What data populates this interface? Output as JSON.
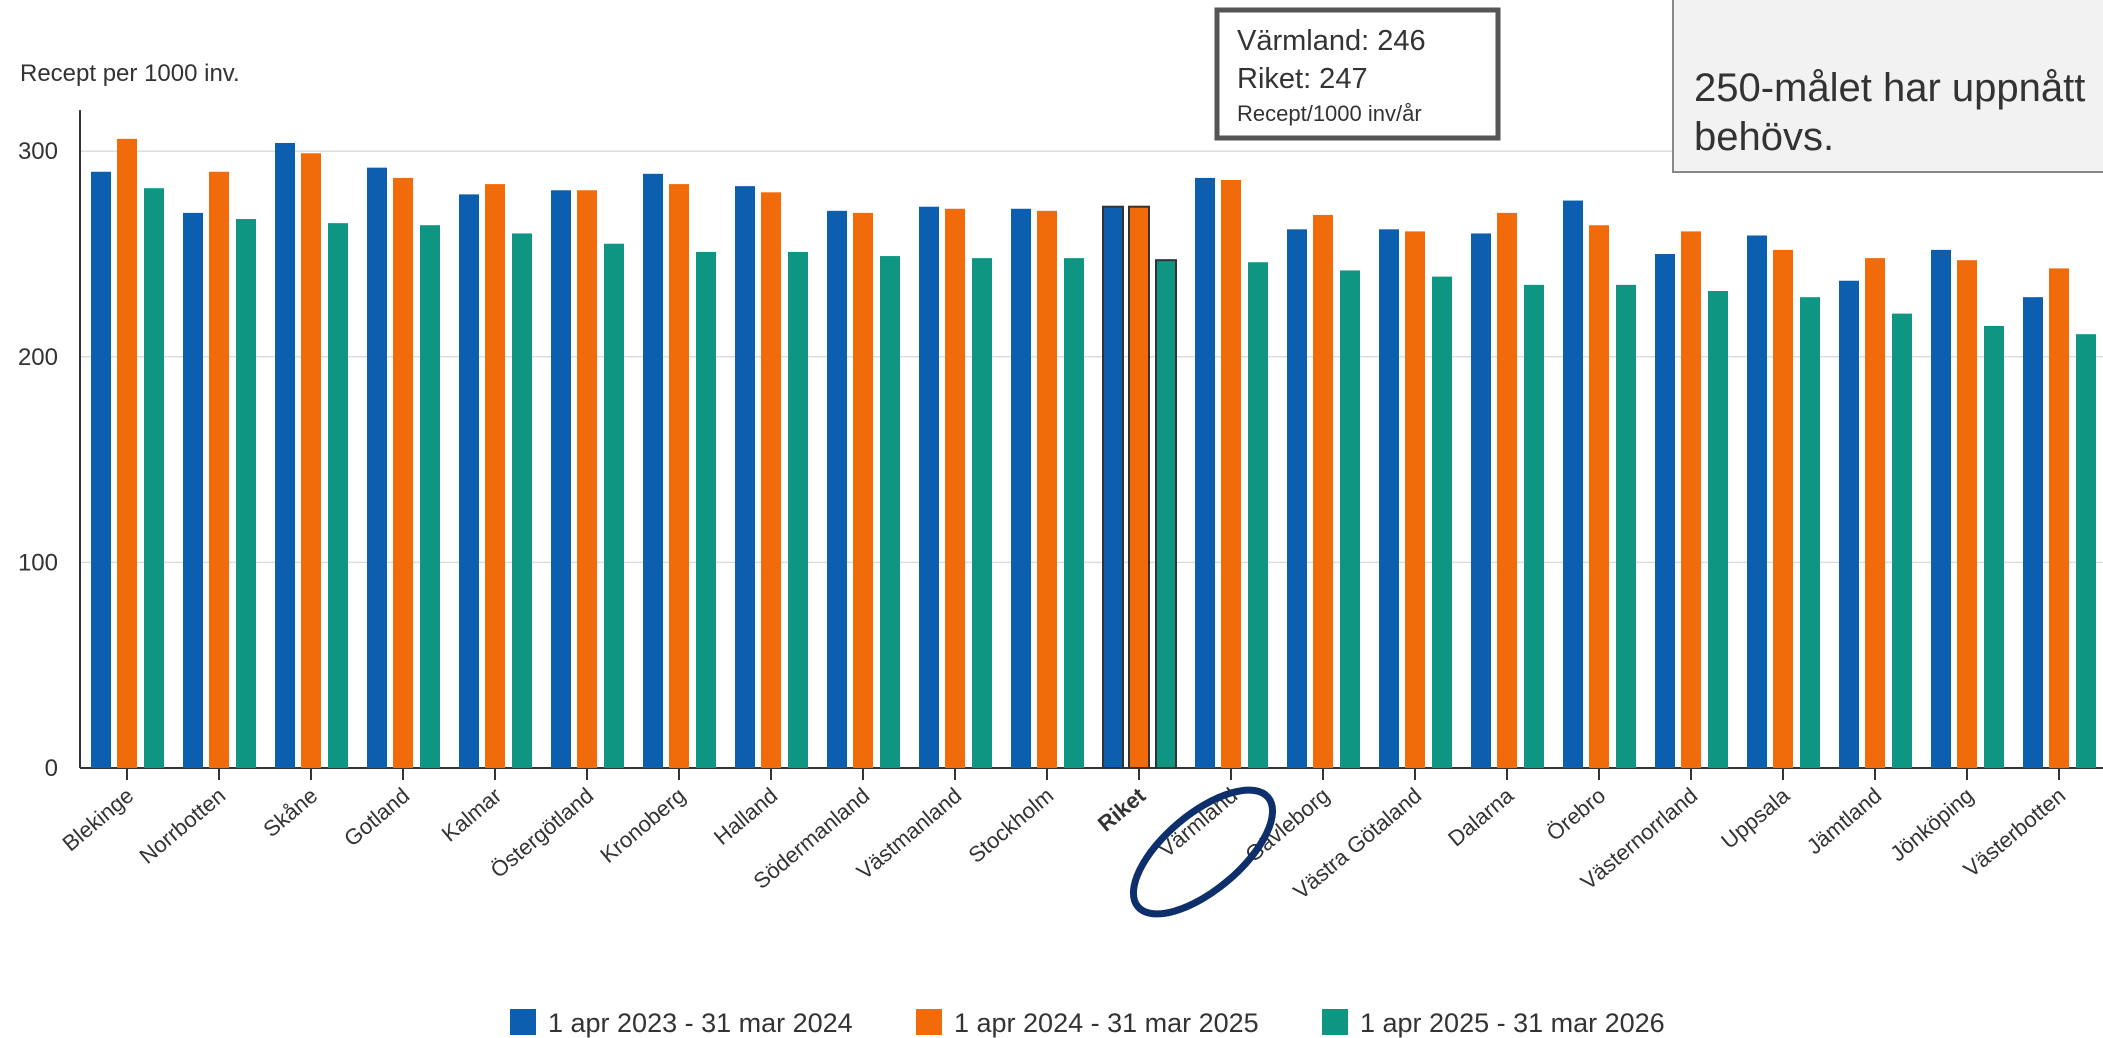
{
  "chart_data": {
    "type": "bar",
    "y_axis_label": "Recept per 1000 inv.",
    "categories": [
      "Blekinge",
      "Norrbotten",
      "Skåne",
      "Gotland",
      "Kalmar",
      "Östergötland",
      "Kronoberg",
      "Halland",
      "Södermanland",
      "Västmanland",
      "Stockholm",
      "Riket",
      "Värmland",
      "Gävleborg",
      "Västra Götaland",
      "Dalarna",
      "Örebro",
      "Västernorrland",
      "Uppsala",
      "Jämtland",
      "Jönköping",
      "Västerbotten"
    ],
    "highlight": "Riket",
    "series": [
      {
        "name": "1 apr 2023 - 31 mar 2024",
        "color": "#0b5fae",
        "values": [
          290,
          270,
          304,
          292,
          279,
          281,
          289,
          283,
          271,
          273,
          272,
          273,
          287,
          262,
          262,
          260,
          276,
          250,
          259,
          237,
          252,
          229
        ]
      },
      {
        "name": "1 apr 2024 - 31 mar 2025",
        "color": "#f26b0a",
        "values": [
          306,
          290,
          299,
          287,
          284,
          281,
          284,
          280,
          270,
          272,
          271,
          273,
          286,
          269,
          261,
          270,
          264,
          261,
          252,
          248,
          247,
          243
        ]
      },
      {
        "name": "1 apr 2025 - 31 mar 2026",
        "color": "#0f9683",
        "values": [
          282,
          267,
          265,
          264,
          260,
          255,
          251,
          251,
          249,
          248,
          248,
          247,
          246,
          242,
          239,
          235,
          235,
          232,
          229,
          221,
          215,
          211
        ]
      }
    ],
    "ylim": [
      0,
      320
    ],
    "yticks": [
      0,
      100,
      200,
      300
    ],
    "grid": true,
    "tooltip": [
      "Värmland: 246",
      "Riket: 247",
      "Recept/1000 inv/år"
    ],
    "annotation": [
      "250-målet har uppnått",
      "behövs."
    ]
  }
}
